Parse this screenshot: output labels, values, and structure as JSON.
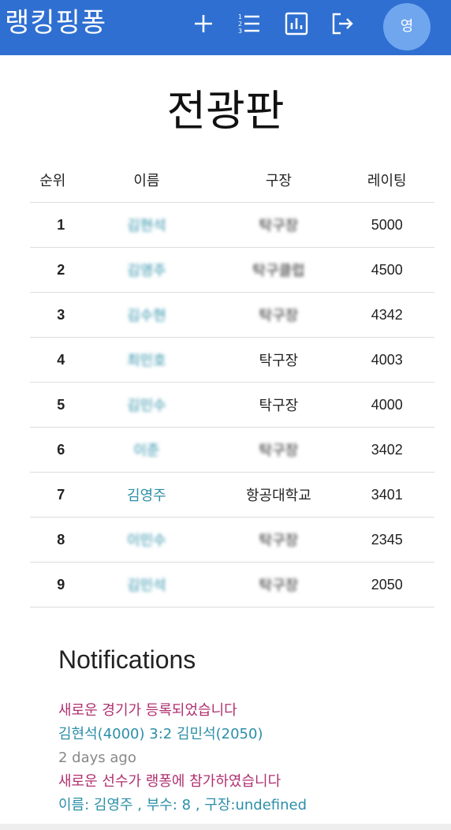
{
  "appbar": {
    "brand": "랭킹핑퐁",
    "avatar_initial": "영",
    "icons": [
      "plus-icon",
      "list-icon",
      "chart-icon",
      "logout-icon"
    ]
  },
  "page_title": "전광판",
  "table": {
    "headers": [
      "순위",
      "이름",
      "구장",
      "레이팅"
    ],
    "rows": [
      {
        "rank": "1",
        "name": "김현석",
        "club": "탁구장",
        "rating": "5000",
        "name_blurred": true,
        "club_blurred": true
      },
      {
        "rank": "2",
        "name": "김영주",
        "club": "탁구클럽",
        "rating": "4500",
        "name_blurred": true,
        "club_blurred": true
      },
      {
        "rank": "3",
        "name": "김수현",
        "club": "탁구장",
        "rating": "4342",
        "name_blurred": true,
        "club_blurred": true
      },
      {
        "rank": "4",
        "name": "최민호",
        "club": "탁구장",
        "rating": "4003",
        "name_blurred": true,
        "club_blurred": false
      },
      {
        "rank": "5",
        "name": "김민수",
        "club": "탁구장",
        "rating": "4000",
        "name_blurred": true,
        "club_blurred": false
      },
      {
        "rank": "6",
        "name": "이준",
        "club": "탁구장",
        "rating": "3402",
        "name_blurred": true,
        "club_blurred": true
      },
      {
        "rank": "7",
        "name": "김영주",
        "club": "항공대학교",
        "rating": "3401",
        "name_blurred": false,
        "club_blurred": false
      },
      {
        "rank": "8",
        "name": "이민수",
        "club": "탁구장",
        "rating": "2345",
        "name_blurred": true,
        "club_blurred": true
      },
      {
        "rank": "9",
        "name": "김민석",
        "club": "탁구장",
        "rating": "2050",
        "name_blurred": true,
        "club_blurred": true
      }
    ]
  },
  "notifications": {
    "title": "Notifications",
    "items": [
      {
        "type": "head",
        "text": "새로운 경기가 등록되었습니다"
      },
      {
        "type": "body",
        "text": "김현석(4000) 3:2 김민석(2050)"
      },
      {
        "type": "time",
        "text": "2 days ago"
      },
      {
        "type": "head",
        "text": "새로운 선수가 랭퐁에 참가하였습니다"
      },
      {
        "type": "body",
        "text": "이름: 김영주 , 부수: 8 , 구장:undefined"
      }
    ]
  },
  "colors": {
    "appbar": "#2f6fd1",
    "avatar": "#6fa6ee",
    "link": "#2b8fa8",
    "notification_head": "#b03070"
  }
}
